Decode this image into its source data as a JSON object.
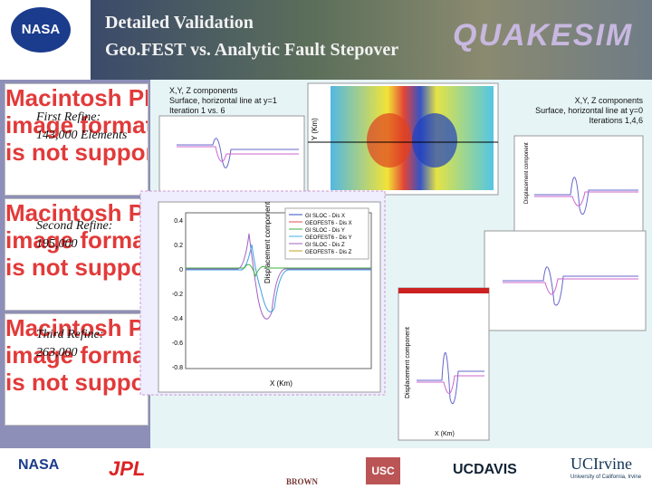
{
  "header": {
    "title_line1": "Detailed Validation",
    "title_line2": "Geo.FEST vs. Analytic Fault Stepover",
    "logo_left": "NASA",
    "logo_right": "QUAKESIM"
  },
  "placeholders": [
    {
      "lines": [
        "Macintosh PICT",
        "image format",
        "is not supported"
      ],
      "caption": [
        "First Refine:",
        "143,000 Elements"
      ]
    },
    {
      "lines": [
        "Macintosh PICT",
        "image format",
        "is not supported"
      ],
      "caption": [
        "Second Refine:",
        "195,000"
      ]
    },
    {
      "lines": [
        "Macintosh PICT",
        "image format",
        "is not supported"
      ],
      "caption": [
        "Third Refine:",
        "263,000"
      ]
    }
  ],
  "note_left": [
    "X,Y, Z components",
    "Surface, horizontal line at y=1",
    "Iteration 1 vs. 6"
  ],
  "note_right": [
    "X,Y, Z components",
    "Surface, horizontal line at y=0",
    "Iterations 1,4,6"
  ],
  "contour": {
    "ylabel": "Y (Km)"
  },
  "main_plot": {
    "ylabel": "Displacement component",
    "xlabel": "X (Km)",
    "yticks": [
      "0.4",
      "0.2",
      "0",
      "-0.2",
      "-0.4",
      "-0.6",
      "-0.8"
    ],
    "legend": [
      "GI SLOC - Dis X",
      "GEOFEST6 - Dis X",
      "GI SLOC - Dis Y",
      "GEOFEST6 - Dis Y",
      "GI SLOC - Dis Z",
      "GEOFEST6 - Dis Z"
    ]
  },
  "small_plot": {
    "xlabel": "X (Km)",
    "ylabel": "Displacement component"
  },
  "footer": {
    "logos": [
      "NASA",
      "JPL",
      "BROWN",
      "USC",
      "UCDAVIS",
      "UCIrvine"
    ],
    "irvine_sub": "University of California, Irvine"
  }
}
